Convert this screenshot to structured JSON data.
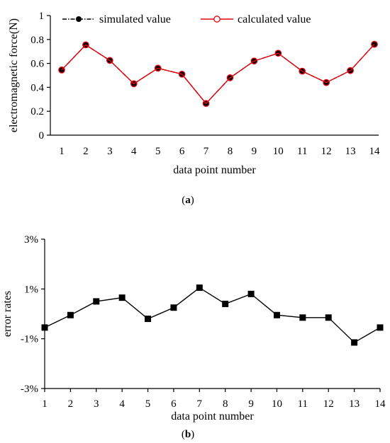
{
  "chart_data": [
    {
      "type": "line",
      "panel_label": "(a)",
      "panel_letter": "a",
      "xlabel": "data point number",
      "ylabel": "electromagnetic force(N)",
      "x": [
        1,
        2,
        3,
        4,
        5,
        6,
        7,
        8,
        9,
        10,
        11,
        12,
        13,
        14
      ],
      "xtick_labels": [
        "1",
        "2",
        "3",
        "4",
        "5",
        "6",
        "7",
        "8",
        "9",
        "10",
        "11",
        "12",
        "13",
        "14"
      ],
      "ylim": [
        0,
        1
      ],
      "yticks": [
        0,
        0.2,
        0.4,
        0.6,
        0.8,
        1
      ],
      "ytick_labels": [
        "0",
        "0.2",
        "0.4",
        "0.6",
        "0.8",
        "1"
      ],
      "grid": false,
      "legend_position": "top",
      "series": [
        {
          "name": "simulated value",
          "color": "#000000",
          "marker": "filled-circle",
          "line": "dash-dot",
          "values": [
            0.545,
            0.755,
            0.625,
            0.43,
            0.56,
            0.51,
            0.265,
            0.48,
            0.62,
            0.685,
            0.535,
            0.44,
            0.54,
            0.76
          ]
        },
        {
          "name": "calculated value",
          "color": "#e8000b",
          "marker": "open-circle",
          "line": "solid",
          "values": [
            0.545,
            0.755,
            0.625,
            0.43,
            0.56,
            0.51,
            0.265,
            0.48,
            0.62,
            0.685,
            0.535,
            0.44,
            0.54,
            0.76
          ]
        }
      ]
    },
    {
      "type": "line",
      "panel_label": "(b)",
      "panel_letter": "b",
      "xlabel": "data point number",
      "ylabel": "error rates",
      "x": [
        1,
        2,
        3,
        4,
        5,
        6,
        7,
        8,
        9,
        10,
        11,
        12,
        13,
        14
      ],
      "xtick_labels": [
        "1",
        "2",
        "3",
        "4",
        "5",
        "6",
        "7",
        "8",
        "9",
        "10",
        "11",
        "12",
        "13",
        "14"
      ],
      "ylim": [
        -3,
        3
      ],
      "yticks": [
        -3,
        -1,
        1,
        3
      ],
      "ytick_labels": [
        "-3%",
        "-1%",
        "1%",
        "3%"
      ],
      "grid": false,
      "series": [
        {
          "color": "#000000",
          "marker": "filled-square",
          "line": "solid",
          "values": [
            -0.55,
            -0.05,
            0.5,
            0.65,
            -0.2,
            0.25,
            1.05,
            0.4,
            0.8,
            -0.05,
            -0.15,
            -0.15,
            -1.15,
            -0.55
          ]
        }
      ]
    }
  ]
}
